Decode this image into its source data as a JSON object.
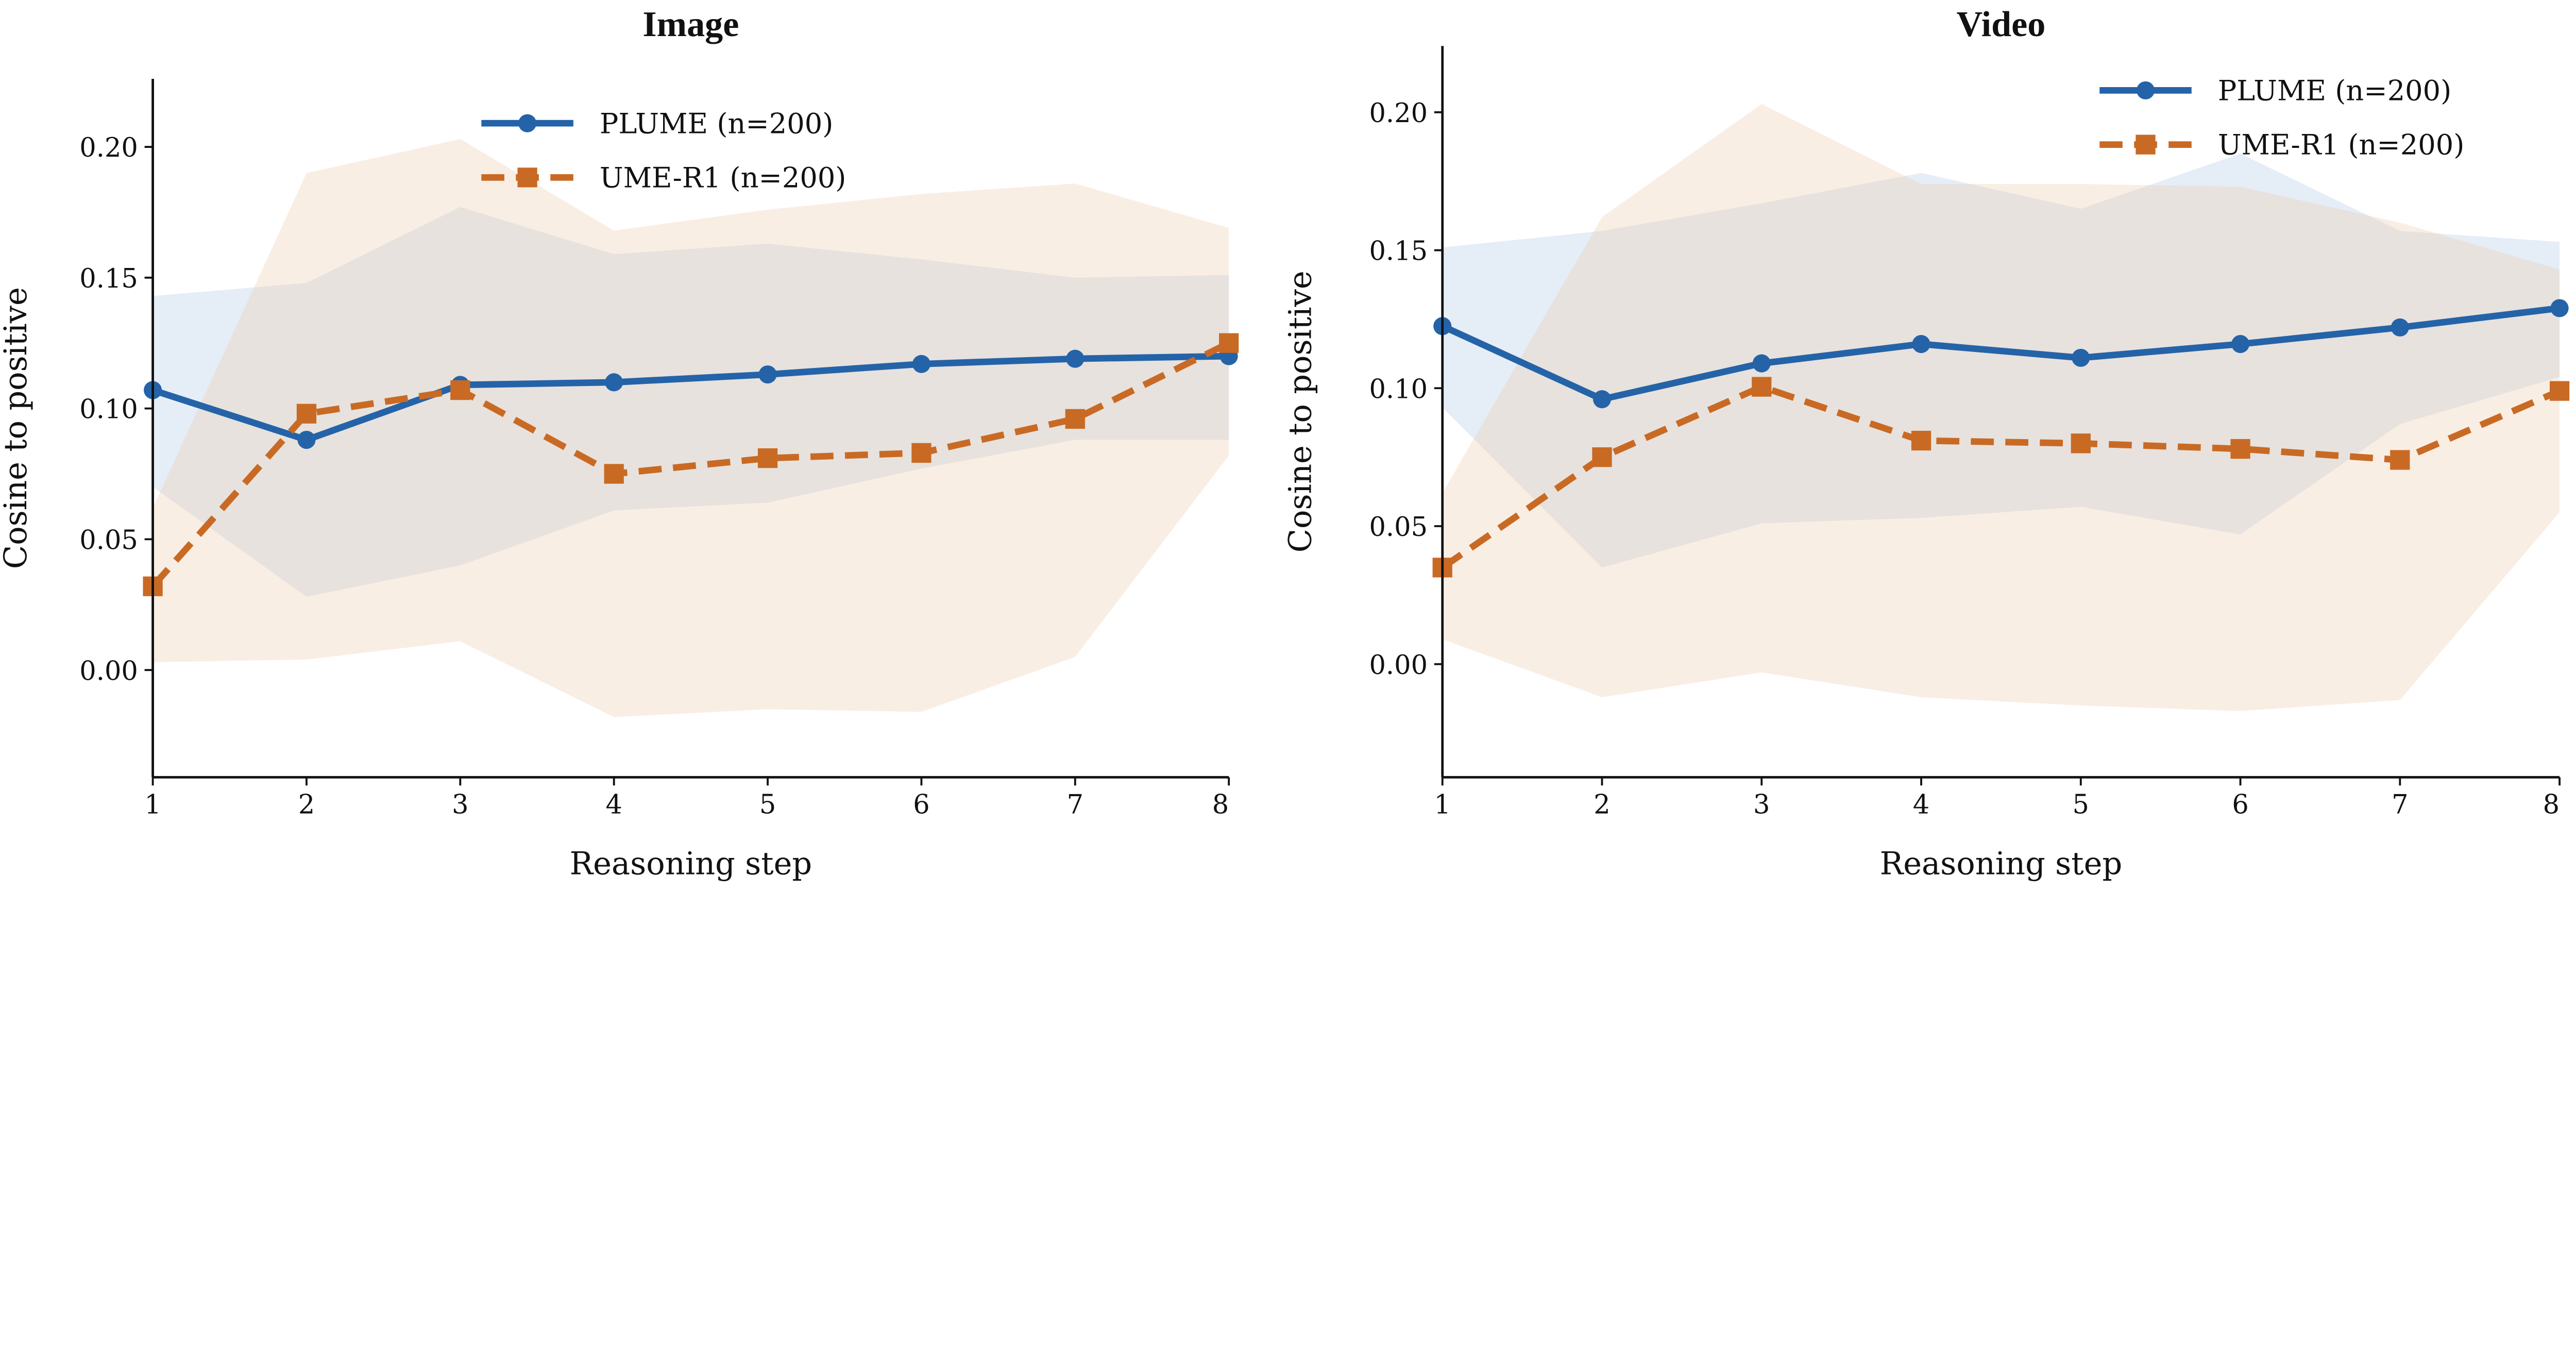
{
  "chart_data": [
    {
      "type": "line",
      "title": "Image",
      "xlabel": "Reasoning step",
      "ylabel": "Cosine to positive",
      "x": [
        1,
        2,
        3,
        4,
        5,
        6,
        7,
        8
      ],
      "xlim": [
        1,
        8
      ],
      "ylim": [
        -0.041,
        0.226
      ],
      "xticks": [
        "1",
        "2",
        "3",
        "4",
        "5",
        "6",
        "7",
        "8"
      ],
      "yticks": [
        0.0,
        0.05,
        0.1,
        0.15,
        0.2
      ],
      "ytick_labels": [
        "0.00",
        "0.05",
        "0.10",
        "0.15",
        "0.20"
      ],
      "grid": false,
      "legend_position": "top-center",
      "series": [
        {
          "name": "PLUME (n=200)",
          "color": "#2563a8",
          "style": "solid",
          "marker": "circle",
          "values": [
            0.107,
            0.088,
            0.109,
            0.11,
            0.113,
            0.117,
            0.119,
            0.12
          ],
          "band_upper": [
            0.143,
            0.148,
            0.177,
            0.159,
            0.163,
            0.157,
            0.15,
            0.151
          ],
          "band_lower": [
            0.07,
            0.028,
            0.04,
            0.061,
            0.064,
            0.077,
            0.088,
            0.088
          ]
        },
        {
          "name": "UME-R1 (n=200)",
          "color": "#c96a24",
          "style": "dashed",
          "marker": "square",
          "values": [
            0.032,
            0.098,
            0.107,
            0.075,
            0.081,
            0.083,
            0.096,
            0.125
          ],
          "band_upper": [
            0.062,
            0.19,
            0.203,
            0.168,
            0.176,
            0.182,
            0.186,
            0.169
          ],
          "band_lower": [
            0.003,
            0.004,
            0.011,
            -0.018,
            -0.015,
            -0.016,
            0.005,
            0.082
          ]
        }
      ]
    },
    {
      "type": "line",
      "title": "Video",
      "xlabel": "Reasoning step",
      "ylabel": "Cosine to positive",
      "x": [
        1,
        2,
        3,
        4,
        5,
        6,
        7,
        8
      ],
      "xlim": [
        1,
        8
      ],
      "ylim": [
        -0.041,
        0.224
      ],
      "xticks": [
        "1",
        "2",
        "3",
        "4",
        "5",
        "6",
        "7",
        "8"
      ],
      "yticks": [
        0.0,
        0.05,
        0.1,
        0.15,
        0.2
      ],
      "ytick_labels": [
        "0.00",
        "0.05",
        "0.10",
        "0.15",
        "0.20"
      ],
      "grid": false,
      "legend_position": "top-right",
      "series": [
        {
          "name": "PLUME (n=200)",
          "color": "#2563a8",
          "style": "solid",
          "marker": "circle",
          "values": [
            0.1225,
            0.096,
            0.109,
            0.116,
            0.111,
            0.116,
            0.122,
            0.129
          ],
          "band_upper": [
            0.151,
            0.157,
            0.167,
            0.178,
            0.165,
            0.185,
            0.157,
            0.153
          ],
          "band_lower": [
            0.093,
            0.035,
            0.051,
            0.053,
            0.057,
            0.047,
            0.087,
            0.104
          ]
        },
        {
          "name": "UME-R1 (n=200)",
          "color": "#c96a24",
          "style": "dashed",
          "marker": "square",
          "values": [
            0.035,
            0.075,
            0.1005,
            0.081,
            0.08,
            0.078,
            0.074,
            0.099
          ],
          "band_upper": [
            0.062,
            0.162,
            0.203,
            0.174,
            0.174,
            0.173,
            0.16,
            0.143
          ],
          "band_lower": [
            0.009,
            -0.012,
            -0.003,
            -0.012,
            -0.015,
            -0.017,
            -0.013,
            0.055
          ]
        }
      ]
    }
  ]
}
